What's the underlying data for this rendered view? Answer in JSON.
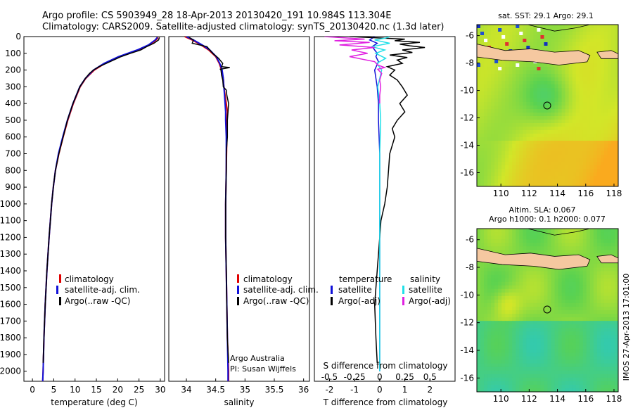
{
  "header": {
    "line1": "Argo profile: CS 5903949_28 18-Apr-2013 20130420_191 10.984S 113.304E",
    "line2": "Climatology: CARS2009. Satellite-adjusted climatology: synTS_20130420.nc (1.3d later)"
  },
  "colors": {
    "climatology": "#e00000",
    "satellite": "#1010d8",
    "argo": "#000000",
    "sat_s": "#20e0e8",
    "argo_s": "#e020e0",
    "land": "#f5c8a0"
  },
  "chart_data": [
    {
      "type": "line",
      "id": "temperature",
      "xlabel": "temperature (deg C)",
      "xlim": [
        -2,
        31
      ],
      "xticks": [
        "0",
        "5",
        "10",
        "15",
        "20",
        "25",
        "30"
      ],
      "ylim": [
        0,
        2060
      ],
      "yticks": [
        "0",
        "100",
        "200",
        "300",
        "400",
        "500",
        "600",
        "700",
        "800",
        "900",
        "1000",
        "1100",
        "1200",
        "1300",
        "1400",
        "1500",
        "1600",
        "1700",
        "1800",
        "1900",
        "2000"
      ],
      "legend": [
        "climatology",
        "satellite-adj. clim.",
        "Argo(..raw -QC)"
      ],
      "series": [
        {
          "name": "climatology",
          "depth": [
            5,
            20,
            50,
            80,
            120,
            160,
            200,
            250,
            300,
            400,
            500,
            600,
            700,
            800,
            900,
            1000,
            1200,
            1400,
            1600,
            1800,
            2000,
            2060
          ],
          "values": [
            29.5,
            29.0,
            27.5,
            25.0,
            20.5,
            17.0,
            14.5,
            12.5,
            11.2,
            9.6,
            8.3,
            7.2,
            6.2,
            5.4,
            4.9,
            4.5,
            3.9,
            3.4,
            3.0,
            2.7,
            2.5,
            2.4
          ]
        },
        {
          "name": "satellite-adj. clim.",
          "depth": [
            5,
            20,
            50,
            80,
            120,
            160,
            200,
            250,
            300,
            400,
            500,
            600,
            700,
            800,
            900,
            1000,
            1200,
            1400,
            1600,
            1800,
            2000,
            2060
          ],
          "values": [
            29.3,
            28.8,
            27.2,
            24.6,
            20.2,
            16.8,
            14.3,
            12.4,
            11.1,
            9.5,
            8.2,
            7.1,
            6.1,
            5.4,
            4.9,
            4.5,
            3.9,
            3.4,
            3.0,
            2.7,
            2.5,
            2.4
          ]
        },
        {
          "name": "Argo(..raw -QC)",
          "depth": [
            5,
            20,
            40,
            60,
            80,
            100,
            120,
            150,
            180,
            200,
            220,
            250,
            300,
            400,
            500,
            600,
            700,
            800,
            900,
            1000,
            1200,
            1400,
            1600,
            1800,
            1950
          ],
          "values": [
            29.8,
            29.6,
            28.5,
            26.8,
            25.4,
            23.0,
            20.8,
            18.2,
            15.6,
            14.3,
            13.4,
            12.4,
            11.1,
            9.5,
            8.2,
            7.2,
            6.2,
            5.4,
            4.9,
            4.5,
            3.9,
            3.4,
            3.0,
            2.7,
            2.5
          ]
        }
      ]
    },
    {
      "type": "line",
      "id": "salinity",
      "xlabel": "salinity",
      "xlim": [
        33.7,
        36.1
      ],
      "xticks": [
        "34",
        "34.5",
        "35",
        "35.5",
        "36"
      ],
      "ylim": [
        0,
        2060
      ],
      "legend": [
        "climatology",
        "satellite-adj. clim.",
        "Argo(..raw -QC)"
      ],
      "annotation": [
        "Argo Australia",
        "PI: Susan Wijffels"
      ],
      "series": [
        {
          "name": "climatology",
          "depth": [
            0,
            20,
            50,
            80,
            120,
            160,
            200,
            250,
            300,
            350,
            400,
            450,
            500,
            600,
            800,
            1000,
            1200,
            1400,
            1600,
            1800,
            2000,
            2060
          ],
          "values": [
            33.97,
            34.1,
            34.25,
            34.38,
            34.5,
            34.56,
            34.6,
            34.63,
            34.64,
            34.66,
            34.68,
            34.7,
            34.69,
            34.69,
            34.68,
            34.67,
            34.67,
            34.68,
            34.69,
            34.7,
            34.72,
            34.72
          ]
        },
        {
          "name": "satellite-adj. clim.",
          "depth": [
            0,
            20,
            50,
            80,
            120,
            160,
            200,
            250,
            300,
            350,
            400,
            450,
            500,
            600,
            800,
            1000,
            1200,
            1400,
            1600,
            1800,
            2000,
            2060
          ],
          "values": [
            34.0,
            34.12,
            34.27,
            34.4,
            34.51,
            34.57,
            34.61,
            34.63,
            34.64,
            34.65,
            34.66,
            34.67,
            34.67,
            34.68,
            34.68,
            34.67,
            34.67,
            34.68,
            34.69,
            34.7,
            34.71,
            34.71
          ]
        },
        {
          "name": "Argo(..raw -QC)",
          "depth": [
            5,
            20,
            40,
            60,
            80,
            100,
            130,
            160,
            180,
            185,
            195,
            200,
            230,
            260,
            300,
            320,
            350,
            400,
            450,
            500,
            600,
            700,
            800,
            1000,
            1200,
            1400,
            1600,
            1800,
            1950
          ],
          "values": [
            34.05,
            34.12,
            34.1,
            34.35,
            34.4,
            34.45,
            34.55,
            34.62,
            34.6,
            34.74,
            34.58,
            34.59,
            34.6,
            34.62,
            34.63,
            34.68,
            34.69,
            34.72,
            34.71,
            34.7,
            34.7,
            34.68,
            34.68,
            34.67,
            34.67,
            34.68,
            34.69,
            34.7,
            34.72
          ]
        }
      ]
    },
    {
      "type": "line",
      "id": "difference",
      "xlabel": "T difference from climatology",
      "xlabel_top": "S difference from climatology",
      "xlim": [
        -2.6,
        3.0
      ],
      "xticks": [
        "-2",
        "-1",
        "0",
        "1",
        "2"
      ],
      "xticks_top": [
        "-0.5",
        "-0.25",
        "0",
        "0.25",
        "0.5"
      ],
      "ylim": [
        0,
        2060
      ],
      "legend_titles": [
        "temperature",
        "salinity"
      ],
      "legend": [
        "satellite",
        "Argo(-adj)",
        "satellite",
        "Argo(-adj)"
      ],
      "series": [
        {
          "name": "temperature satellite",
          "depth": [
            0,
            20,
            40,
            60,
            80,
            100,
            120,
            150,
            200,
            300,
            400,
            500,
            700,
            1000,
            1500,
            2000
          ],
          "values": [
            -0.2,
            -0.4,
            -0.1,
            -0.3,
            -0.2,
            -0.1,
            -0.15,
            -0.05,
            -0.2,
            -0.1,
            -0.05,
            -0.05,
            0,
            0,
            0,
            0
          ]
        },
        {
          "name": "temperature Argo(-adj)",
          "depth": [
            0,
            15,
            25,
            35,
            45,
            55,
            65,
            80,
            95,
            110,
            125,
            140,
            160,
            180,
            200,
            230,
            260,
            300,
            350,
            400,
            450,
            500,
            550,
            600,
            700,
            800,
            900,
            1000,
            1100,
            1200,
            1400,
            1600,
            1800,
            1950
          ],
          "values": [
            -1.2,
            1.0,
            0.6,
            1.6,
            0.8,
            1.2,
            1.8,
            0.9,
            1.3,
            0.4,
            1.1,
            0.7,
            0.9,
            0.3,
            0.6,
            0.4,
            0.7,
            0.9,
            1.1,
            0.8,
            1.0,
            0.7,
            0.5,
            0.6,
            0.4,
            0.35,
            0.3,
            0.2,
            0.05,
            0.0,
            -0.1,
            -0.2,
            -0.15,
            -0.1
          ]
        },
        {
          "name": "salinity satellite",
          "depth": [
            0,
            10,
            20,
            40,
            60,
            80,
            100,
            130,
            160,
            200,
            300,
            400,
            500,
            700,
            1000,
            1500,
            2000
          ],
          "values": [
            0.1,
            0.05,
            -0.05,
            0.1,
            -0.08,
            0.05,
            -0.04,
            0.06,
            -0.03,
            0.02,
            -0.02,
            0.0,
            0.01,
            0.0,
            0.0,
            0.0,
            0.0
          ]
        },
        {
          "name": "salinity Argo(-adj)",
          "depth": [
            0,
            15,
            25,
            35,
            50,
            65,
            80,
            100,
            120,
            150,
            170,
            185,
            195,
            220,
            260,
            300,
            350,
            400
          ],
          "values": [
            -0.55,
            -0.15,
            -0.45,
            -0.1,
            -0.4,
            -0.05,
            -0.28,
            -0.12,
            -0.3,
            -0.05,
            -0.02,
            0.05,
            -0.02,
            0.02,
            0.0,
            0.01,
            0.0,
            0.0
          ]
        }
      ]
    },
    {
      "type": "heatmap",
      "id": "sst-map",
      "title": "sat. SST: 29.1  Argo: 29.1",
      "xticks": [
        "110",
        "112",
        "114",
        "116",
        "118"
      ],
      "yticks": [
        "-6",
        "-8",
        "-10",
        "-12",
        "-14",
        "-16"
      ],
      "marker": {
        "lon": 113.3,
        "lat": -10.98
      }
    },
    {
      "type": "heatmap",
      "id": "sla-map",
      "title": [
        "Altim. SLA: 0.067",
        "Argo h1000: 0.1 h2000: 0.077"
      ],
      "xticks": [
        "110",
        "112",
        "114",
        "116",
        "118"
      ],
      "yticks": [
        "-6",
        "-8",
        "-10",
        "-12",
        "-14",
        "-16"
      ],
      "marker": {
        "lon": 113.3,
        "lat": -10.98
      }
    }
  ],
  "footer": {
    "stamp": "IMOS 27-Apr-2013 17:01:00"
  }
}
